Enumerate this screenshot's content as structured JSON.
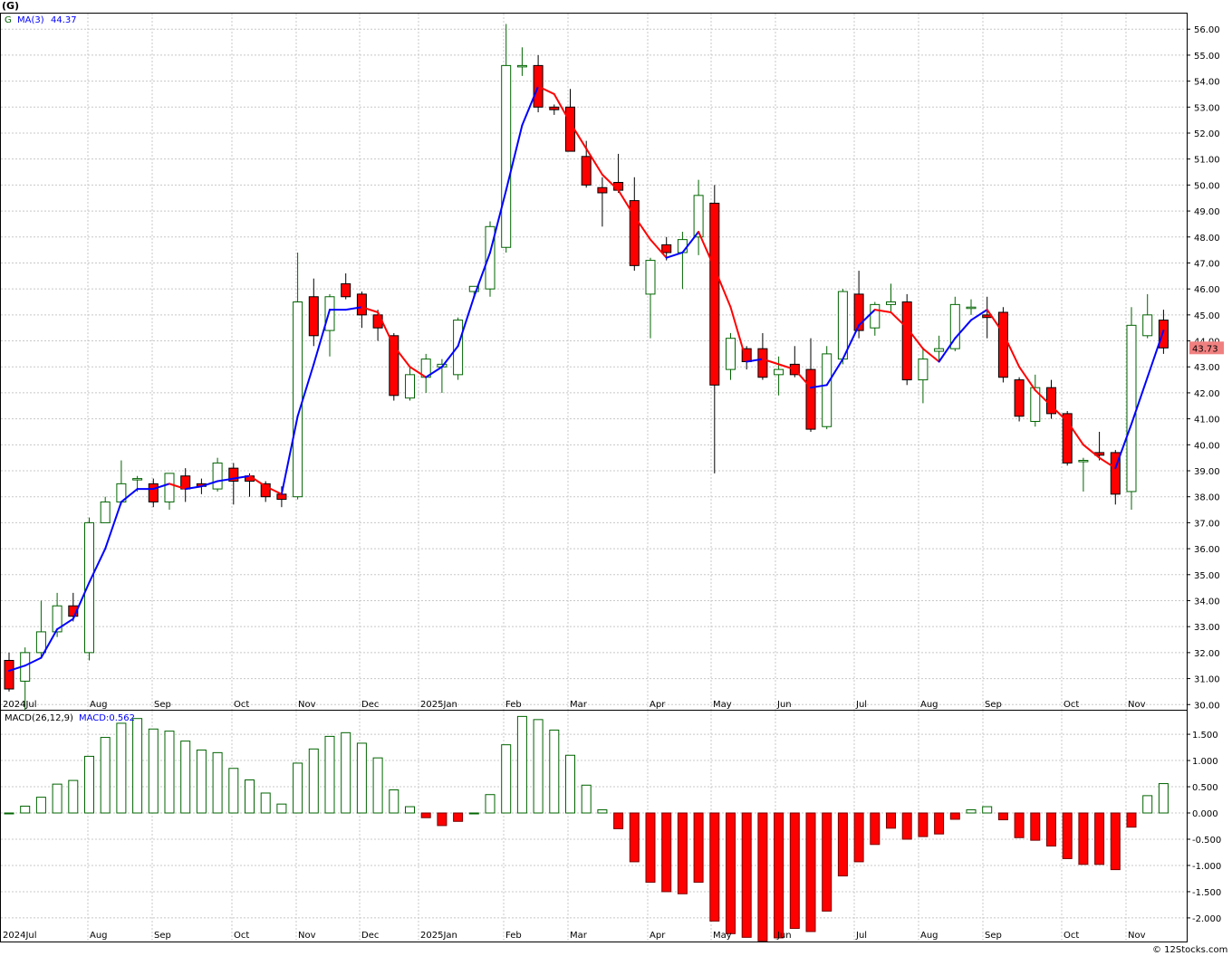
{
  "symbol_label": "(G)",
  "copyright": "© 12Stocks.com",
  "price_panel": {
    "legend_symbol": "G",
    "ma_label": "MA(3)",
    "ma_value": "44.37",
    "last_price": "43.73",
    "last_price_color": "#f08080"
  },
  "macd_panel": {
    "label": "MACD(26,12,9)",
    "value_label": "MACD:0.562"
  },
  "colors": {
    "up_candle": "#ffffff",
    "up_outline": "#006400",
    "down_candle": "#ff0000",
    "ma_up": "#0000ff",
    "ma_down": "#ff0000",
    "macd_pos_outline": "#006400",
    "macd_neg": "#ff0000"
  },
  "chart_data": [
    {
      "type": "candlestick",
      "interval": "weekly",
      "x_labels": [
        "2024Jul",
        "Aug",
        "Sep",
        "Oct",
        "Nov",
        "Dec",
        "2025Jan",
        "Feb",
        "Mar",
        "Apr",
        "May",
        "Jun",
        "Jul",
        "Aug",
        "Sep",
        "Oct",
        "Nov"
      ],
      "ylim": [
        29.8,
        56.6
      ],
      "y_ticks": [
        "30.00",
        "31.00",
        "32.00",
        "33.00",
        "34.00",
        "35.00",
        "36.00",
        "37.00",
        "38.00",
        "39.00",
        "40.00",
        "41.00",
        "42.00",
        "43.00",
        "44.00",
        "45.00",
        "46.00",
        "47.00",
        "48.00",
        "49.00",
        "50.00",
        "51.00",
        "52.00",
        "53.00",
        "54.00",
        "55.00",
        "56.00"
      ],
      "ohlc": [
        [
          31.7,
          32.0,
          30.5,
          30.6
        ],
        [
          30.9,
          32.2,
          29.8,
          32.0
        ],
        [
          32.0,
          34.0,
          31.8,
          32.8
        ],
        [
          32.8,
          34.3,
          32.6,
          33.8
        ],
        [
          33.8,
          34.3,
          33.2,
          33.4
        ],
        [
          32.0,
          37.2,
          31.7,
          37.0
        ],
        [
          37.0,
          38.0,
          37.0,
          37.8
        ],
        [
          37.8,
          39.4,
          37.7,
          38.5
        ],
        [
          38.7,
          38.8,
          38.2,
          38.7
        ],
        [
          38.5,
          38.7,
          37.6,
          37.8
        ],
        [
          37.8,
          38.9,
          37.5,
          38.9
        ],
        [
          38.8,
          39.1,
          37.8,
          38.3
        ],
        [
          38.5,
          38.7,
          38.1,
          38.4
        ],
        [
          38.3,
          39.5,
          38.2,
          39.3
        ],
        [
          39.1,
          39.3,
          37.7,
          38.6
        ],
        [
          38.8,
          38.9,
          38.0,
          38.6
        ],
        [
          38.5,
          38.6,
          37.8,
          38.0
        ],
        [
          38.1,
          38.4,
          37.6,
          37.9
        ],
        [
          38.0,
          47.4,
          37.9,
          45.5
        ],
        [
          45.7,
          46.4,
          43.8,
          44.2
        ],
        [
          44.4,
          45.8,
          43.4,
          45.7
        ],
        [
          46.2,
          46.6,
          45.6,
          45.7
        ],
        [
          45.8,
          45.9,
          44.5,
          45.0
        ],
        [
          45.0,
          45.2,
          44.0,
          44.5
        ],
        [
          44.2,
          44.3,
          41.7,
          41.9
        ],
        [
          41.8,
          43.0,
          41.7,
          42.7
        ],
        [
          42.6,
          43.5,
          42.0,
          43.3
        ],
        [
          43.0,
          43.3,
          42.0,
          43.1
        ],
        [
          42.7,
          44.9,
          42.5,
          44.8
        ],
        [
          45.9,
          46.0,
          45.7,
          46.1
        ],
        [
          46.0,
          48.6,
          45.7,
          48.4
        ],
        [
          47.6,
          56.2,
          47.4,
          54.6
        ],
        [
          54.6,
          55.3,
          54.2,
          54.6
        ],
        [
          54.6,
          55.0,
          52.8,
          53.0
        ],
        [
          53.0,
          53.1,
          52.7,
          52.9
        ],
        [
          53.0,
          53.7,
          51.3,
          51.3
        ],
        [
          51.1,
          51.7,
          49.9,
          50.0
        ],
        [
          49.9,
          50.3,
          48.4,
          49.7
        ],
        [
          50.1,
          51.2,
          49.7,
          49.8
        ],
        [
          49.4,
          50.3,
          46.7,
          46.9
        ],
        [
          45.8,
          47.2,
          44.1,
          47.1
        ],
        [
          47.7,
          48.0,
          47.1,
          47.4
        ],
        [
          47.4,
          48.2,
          46.0,
          47.9
        ],
        [
          48.0,
          50.2,
          47.3,
          49.6
        ],
        [
          49.3,
          50.0,
          38.9,
          42.3
        ],
        [
          42.9,
          44.3,
          42.5,
          44.1
        ],
        [
          43.7,
          43.8,
          42.9,
          43.2
        ],
        [
          43.7,
          44.3,
          42.5,
          42.6
        ],
        [
          42.7,
          43.4,
          41.9,
          42.9
        ],
        [
          43.1,
          43.8,
          42.6,
          42.7
        ],
        [
          42.9,
          44.1,
          40.5,
          40.6
        ],
        [
          40.7,
          43.8,
          40.6,
          43.5
        ],
        [
          43.3,
          46.0,
          43.1,
          45.9
        ],
        [
          45.8,
          46.7,
          44.1,
          44.4
        ],
        [
          44.5,
          45.5,
          44.2,
          45.4
        ],
        [
          45.4,
          46.2,
          45.1,
          45.5
        ],
        [
          45.5,
          45.8,
          42.3,
          42.5
        ],
        [
          42.5,
          43.7,
          41.6,
          43.3
        ],
        [
          43.6,
          44.2,
          43.2,
          43.7
        ],
        [
          43.7,
          45.7,
          43.6,
          45.4
        ],
        [
          45.3,
          45.6,
          45.0,
          45.3
        ],
        [
          45.0,
          45.7,
          44.1,
          44.9
        ],
        [
          45.1,
          45.3,
          42.4,
          42.6
        ],
        [
          42.5,
          42.6,
          40.9,
          41.1
        ],
        [
          40.9,
          42.7,
          40.7,
          42.2
        ],
        [
          42.2,
          42.5,
          41.0,
          41.2
        ],
        [
          41.2,
          41.3,
          39.2,
          39.3
        ],
        [
          39.4,
          39.5,
          38.2,
          39.4
        ],
        [
          39.7,
          40.5,
          39.4,
          39.6
        ],
        [
          39.7,
          39.8,
          37.7,
          38.1
        ],
        [
          38.2,
          45.3,
          37.5,
          44.6
        ],
        [
          44.2,
          45.8,
          44.1,
          45.0
        ],
        [
          44.8,
          45.2,
          43.5,
          43.73
        ]
      ],
      "ma3": [
        31.3,
        31.5,
        31.8,
        32.9,
        33.3,
        34.7,
        36.0,
        37.8,
        38.3,
        38.3,
        38.5,
        38.3,
        38.4,
        38.6,
        38.7,
        38.8,
        38.4,
        38.1,
        41.1,
        43.1,
        45.2,
        45.2,
        45.3,
        45.1,
        43.8,
        43.0,
        42.6,
        43.0,
        43.8,
        45.7,
        47.4,
        49.8,
        52.3,
        53.8,
        53.5,
        52.4,
        51.4,
        50.4,
        49.8,
        48.8,
        47.9,
        47.2,
        47.4,
        48.2,
        46.8,
        45.3,
        43.2,
        43.3,
        43.1,
        42.9,
        42.2,
        42.3,
        43.3,
        44.6,
        45.2,
        45.1,
        44.5,
        43.7,
        43.2,
        44.1,
        44.8,
        45.2,
        44.3,
        43.0,
        42.1,
        41.5,
        40.9,
        40.0,
        39.5,
        39.1,
        40.8,
        42.6,
        44.4
      ]
    },
    {
      "type": "bar",
      "name": "MACD(26,12,9)",
      "ylim": [
        -2.45,
        1.95
      ],
      "y_ticks": [
        "-2.000",
        "-1.500",
        "-1.000",
        "-0.500",
        "0.000",
        "0.500",
        "1.000",
        "1.500"
      ],
      "values": [
        0.0,
        0.13,
        0.3,
        0.55,
        0.62,
        1.08,
        1.44,
        1.71,
        1.8,
        1.6,
        1.56,
        1.37,
        1.2,
        1.15,
        0.85,
        0.63,
        0.38,
        0.17,
        0.95,
        1.22,
        1.46,
        1.53,
        1.33,
        1.05,
        0.44,
        0.12,
        -0.09,
        -0.24,
        -0.16,
        0.0,
        0.35,
        1.3,
        1.84,
        1.78,
        1.58,
        1.1,
        0.53,
        0.06,
        -0.3,
        -0.93,
        -1.32,
        -1.5,
        -1.54,
        -1.32,
        -2.06,
        -2.3,
        -2.37,
        -2.44,
        -2.38,
        -2.2,
        -2.26,
        -1.87,
        -1.2,
        -0.93,
        -0.6,
        -0.29,
        -0.5,
        -0.45,
        -0.4,
        -0.12,
        0.06,
        0.12,
        -0.13,
        -0.47,
        -0.52,
        -0.63,
        -0.87,
        -0.98,
        -0.98,
        -1.08,
        -0.27,
        0.33,
        0.56
      ]
    }
  ]
}
